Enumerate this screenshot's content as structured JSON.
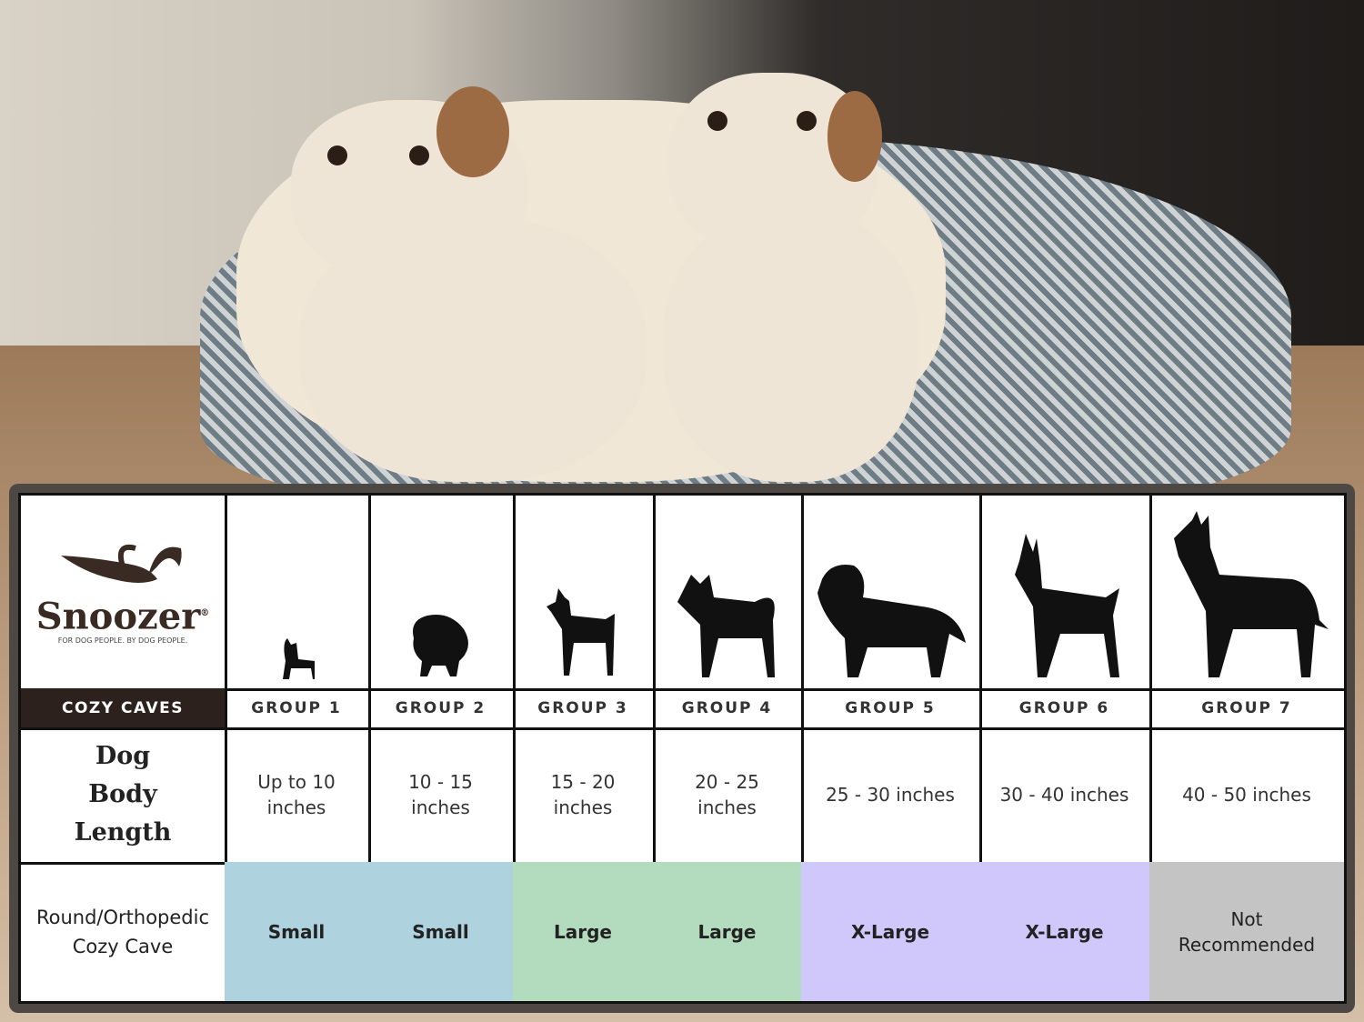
{
  "brand": {
    "name": "Snoozer",
    "registered": "®",
    "tagline": "FOR DOG PEOPLE. BY DOG PEOPLE."
  },
  "product_line": "COZY CAVES",
  "row_labels": {
    "length": "Dog Body Length",
    "bed": "Round/Orthopedic Cozy Cave"
  },
  "groups": [
    {
      "label": "GROUP 1",
      "length": "Up to 10 inches",
      "size": "Small",
      "color": "#aed3de",
      "silhouette": "chihuahua-icon"
    },
    {
      "label": "GROUP 2",
      "length": "10 - 15 inches",
      "size": "Small",
      "color": "#aed3de",
      "silhouette": "pomeranian-icon"
    },
    {
      "label": "GROUP 3",
      "length": "15 - 20 inches",
      "size": "Large",
      "color": "#b3dbbd",
      "silhouette": "boston-terrier-icon"
    },
    {
      "label": "GROUP 4",
      "length": "20 - 25 inches",
      "size": "Large",
      "color": "#b3dbbd",
      "silhouette": "shiba-inu-icon"
    },
    {
      "label": "GROUP 5",
      "length": "25 - 30 inches",
      "size": "X-Large",
      "color": "#d0c8fa",
      "silhouette": "golden-retriever-icon"
    },
    {
      "label": "GROUP 6",
      "length": "30 - 40 inches",
      "size": "X-Large",
      "color": "#d0c8fa",
      "silhouette": "doberman-icon"
    },
    {
      "label": "GROUP 7",
      "length": "40 - 50 inches",
      "size": "Not Recommended",
      "color": "#c4c4c4",
      "silhouette": "great-dane-icon"
    }
  ]
}
